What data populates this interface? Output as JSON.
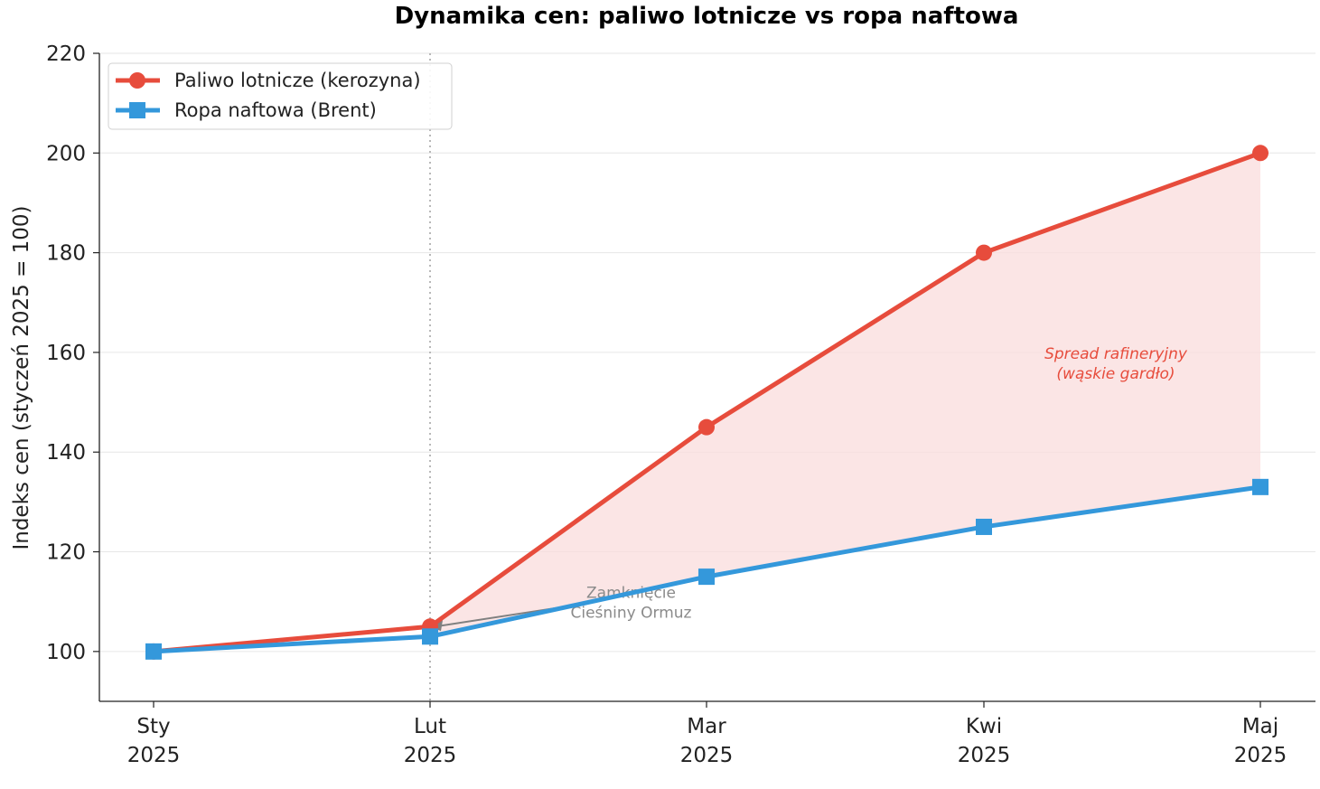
{
  "chart_data": {
    "type": "line",
    "title": "Dynamika cen: paliwo lotnicze vs ropa naftowa",
    "xlabel": "",
    "ylabel": "Indeks cen (styczeń 2025 = 100)",
    "categories": [
      [
        "Sty",
        "2025"
      ],
      [
        "Lut",
        "2025"
      ],
      [
        "Mar",
        "2025"
      ],
      [
        "Kwi",
        "2025"
      ],
      [
        "Maj",
        "2025"
      ]
    ],
    "ylim": [
      90,
      220
    ],
    "yticks": [
      100,
      120,
      140,
      160,
      180,
      200,
      220
    ],
    "grid": "horizontal",
    "legend_position": "top-left",
    "series": [
      {
        "name": "Paliwo lotnicze (kerozyna)",
        "marker": "circle",
        "color": "#e74c3c",
        "values": [
          100,
          105,
          145,
          180,
          200
        ]
      },
      {
        "name": "Ropa naftowa (Brent)",
        "marker": "square",
        "color": "#3498db",
        "values": [
          100,
          103,
          115,
          125,
          133
        ]
      }
    ],
    "shaded_spread_color": "#f9dcdc",
    "annotations": [
      {
        "lines": [
          "Spread rafineryjny",
          "(wąskie gardło)"
        ],
        "style": "italic",
        "color": "#e74c3c",
        "x_index": 3.5,
        "y": 158
      },
      {
        "lines": [
          "Zamknięcie",
          "Cieśniny Ormuz"
        ],
        "style": "normal",
        "color": "#8a8a8a",
        "x_index": 1.75,
        "y": 110,
        "arrow_to_index": 1,
        "arrow_to_y": 105
      }
    ],
    "vertical_marker_index": 1
  }
}
